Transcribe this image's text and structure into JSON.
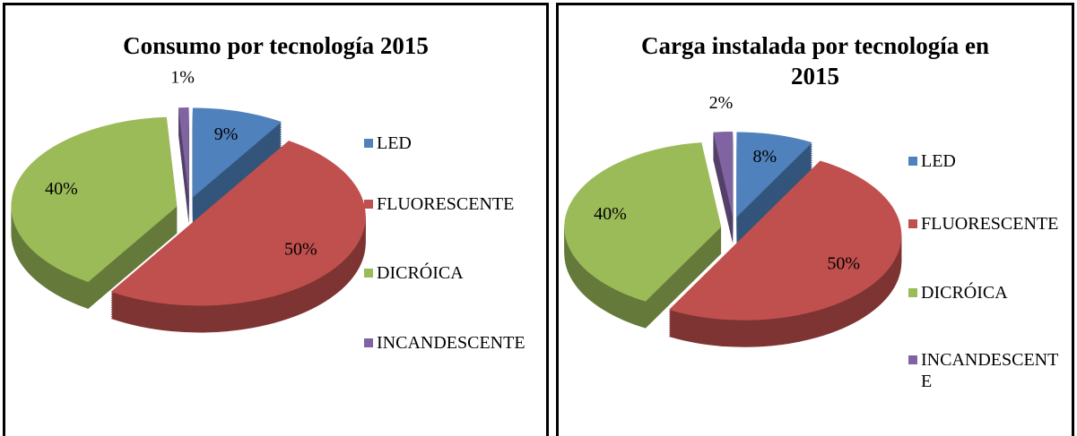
{
  "chart_data": [
    {
      "type": "pie",
      "title": "Consumo por tecnología 2015",
      "categories": [
        "LED",
        "FLUORESCENTE",
        "DICRÓICA",
        "INCANDESCENTE"
      ],
      "values": [
        9,
        50,
        40,
        1
      ],
      "value_labels": [
        "9%",
        "50%",
        "40%",
        "1%"
      ],
      "colors": [
        "#4f81bd",
        "#c0504d",
        "#9bbb59",
        "#8064a2"
      ],
      "legend": "right"
    },
    {
      "type": "pie",
      "title": "Carga instalada por tecnología en 2015",
      "categories": [
        "LED",
        "FLUORESCENTE",
        "DICRÓICA",
        "INCANDESCENTE"
      ],
      "values": [
        8,
        50,
        40,
        2
      ],
      "value_labels": [
        "8%",
        "50%",
        "40%",
        "2%"
      ],
      "colors": [
        "#4f81bd",
        "#c0504d",
        "#9bbb59",
        "#8064a2"
      ],
      "legend": "right"
    }
  ]
}
